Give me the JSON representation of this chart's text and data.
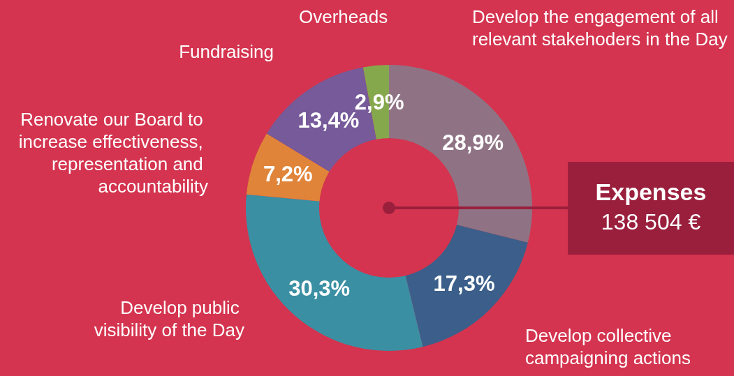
{
  "chart_data": {
    "type": "donut",
    "categories": [
      "Develop the engagement of all relevant stakehoders in the Day",
      "Develop collective campaigning actions",
      "Develop public visibility of the Day",
      "Renovate our Board to increase effectiveness, representation and accountability",
      "Fundraising",
      "Overheads"
    ],
    "values": [
      28.9,
      17.3,
      30.3,
      7.2,
      13.4,
      2.9
    ],
    "value_labels": [
      "28,9%",
      "17,3%",
      "30,3%",
      "7,2%",
      "13,4%",
      "2,9%"
    ],
    "colors": [
      "#8f7385",
      "#3b5f8a",
      "#3a8fa3",
      "#e0843a",
      "#775a9a",
      "#86a84d"
    ],
    "annotations": [
      "Expenses",
      "138 504 €"
    ],
    "legend": false
  }
}
